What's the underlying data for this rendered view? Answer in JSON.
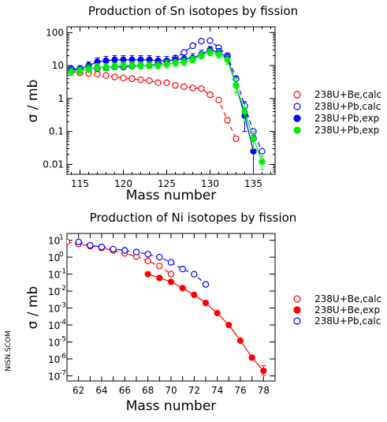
{
  "side_label": "NISN.SCOM",
  "chart_data": [
    {
      "type": "scatter",
      "title": "Production of Sn isotopes by fission",
      "xlabel": "Mass number",
      "ylabel": "σ / mb",
      "xlim": [
        113.5,
        137.5
      ],
      "ylim": [
        0.005,
        150
      ],
      "yscale": "log",
      "x_ticks": [
        115,
        120,
        125,
        130,
        135
      ],
      "y_ticks": [
        {
          "value": 0.01,
          "label": "0.01"
        },
        {
          "value": 0.1,
          "label": "0.1"
        },
        {
          "value": 1,
          "label": "1"
        },
        {
          "value": 10,
          "label": "10"
        },
        {
          "value": 100,
          "label": "100"
        }
      ],
      "legend_position": "right",
      "series": [
        {
          "name": "238U+Be,calc",
          "color": "#ff0000",
          "marker": "open",
          "line": "dashed",
          "x": [
            114,
            115,
            116,
            117,
            118,
            119,
            120,
            121,
            122,
            123,
            124,
            125,
            126,
            127,
            128,
            129,
            130,
            131,
            132,
            133
          ],
          "y": [
            6.5,
            6.0,
            5.8,
            5.5,
            5.0,
            4.5,
            4.2,
            4.0,
            3.7,
            3.5,
            3.0,
            3.0,
            2.5,
            2.3,
            2.1,
            2.0,
            1.3,
            0.9,
            0.22,
            0.06
          ]
        },
        {
          "name": "238U+Pb,calc",
          "color": "#0000ff",
          "marker": "open",
          "line": "dashed",
          "x": [
            114,
            115,
            116,
            117,
            118,
            119,
            120,
            121,
            122,
            123,
            124,
            125,
            126,
            127,
            128,
            129,
            130,
            131,
            132,
            133,
            134,
            135,
            136
          ],
          "y": [
            8,
            8,
            8,
            8,
            8.5,
            9,
            9,
            9.5,
            10,
            10,
            11,
            13,
            17,
            25,
            40,
            55,
            57,
            35,
            20,
            4,
            0.6,
            0.1,
            0.025
          ]
        },
        {
          "name": "238U+Pb,exp",
          "color": "#0000ff",
          "marker": "filled",
          "line": "solid",
          "x": [
            114,
            115,
            116,
            117,
            118,
            119,
            120,
            121,
            122,
            123,
            124,
            125,
            126,
            127,
            128,
            129,
            130,
            131,
            132,
            133,
            134,
            135
          ],
          "y": [
            7,
            8,
            10,
            13,
            14,
            15,
            15,
            15,
            15,
            15,
            14,
            14,
            15,
            16,
            17,
            22,
            30,
            25,
            18,
            2.5,
            0.3,
            0.025
          ],
          "err_lo": [
            1.5,
            1.5,
            2,
            2.5,
            2.5,
            3,
            3,
            3,
            3,
            3,
            3,
            3,
            3,
            3,
            3.5,
            4,
            5,
            5,
            4,
            1.0,
            0.2,
            0.02
          ],
          "err_hi": [
            2,
            2,
            3,
            4,
            5,
            5,
            5,
            5,
            5,
            5,
            5,
            5,
            5,
            5,
            6,
            7,
            8,
            8,
            6,
            2.0,
            0.5,
            0.05
          ]
        },
        {
          "name": "238U+Pb,exp",
          "color": "#00ee00",
          "marker": "filled",
          "line": "solid",
          "x": [
            114,
            115,
            116,
            117,
            118,
            119,
            120,
            121,
            122,
            123,
            124,
            125,
            126,
            127,
            128,
            129,
            130,
            131,
            132,
            133,
            134,
            135,
            136
          ],
          "y": [
            6.5,
            7,
            8,
            9,
            9,
            9.5,
            10,
            10,
            10,
            10,
            10,
            11,
            12,
            13,
            15,
            20,
            25,
            22,
            15,
            2.5,
            0.4,
            0.06,
            0.012
          ],
          "err_lo": [
            1.5,
            1.5,
            2,
            2,
            2,
            2,
            2,
            2,
            2,
            2,
            2,
            2.5,
            2.5,
            3,
            3,
            4,
            5,
            5,
            4,
            1,
            0.2,
            0.03,
            0.005
          ],
          "err_hi": [
            2,
            2,
            2.5,
            2.5,
            2.5,
            2.5,
            3,
            3,
            3,
            3,
            3,
            3.5,
            3.5,
            4,
            4,
            6,
            7,
            7,
            5,
            1.5,
            0.3,
            0.04,
            0.006
          ]
        }
      ]
    },
    {
      "type": "scatter",
      "title": "Production of Ni isotopes by fission",
      "xlabel": "Mass number",
      "ylabel": "σ / mb",
      "xlim": [
        61,
        79
      ],
      "ylim": [
        5e-08,
        25
      ],
      "yscale": "log",
      "x_ticks": [
        62,
        63,
        64,
        65,
        66,
        67,
        68,
        69,
        70,
        71,
        72,
        73,
        74,
        75,
        76,
        77,
        78
      ],
      "x_tick_labels": [
        62,
        64,
        66,
        68,
        70,
        72,
        74,
        76,
        78
      ],
      "y_ticks": [
        {
          "value": 1e-07,
          "base": "10",
          "exp": "-7"
        },
        {
          "value": 1e-06,
          "base": "10",
          "exp": "-6"
        },
        {
          "value": 1e-05,
          "base": "10",
          "exp": "-5"
        },
        {
          "value": 0.0001,
          "base": "10",
          "exp": "-4"
        },
        {
          "value": 0.001,
          "base": "10",
          "exp": "-3"
        },
        {
          "value": 0.01,
          "base": "10",
          "exp": "-2"
        },
        {
          "value": 0.1,
          "base": "10",
          "exp": "-1"
        },
        {
          "value": 1,
          "base": "10",
          "exp": "0"
        },
        {
          "value": 10,
          "base": "10",
          "exp": "1"
        }
      ],
      "legend_position": "right",
      "series": [
        {
          "name": "238U+Be,calc",
          "color": "#ff0000",
          "marker": "open",
          "line": "dashed",
          "x": [
            61,
            62,
            63,
            64,
            65,
            66,
            67,
            68,
            69,
            70
          ],
          "y": [
            8,
            6,
            4.5,
            3.5,
            2.5,
            1.7,
            1.1,
            0.6,
            0.3,
            0.1
          ]
        },
        {
          "name": "238U+Be,exp",
          "color": "#ff0000",
          "marker": "filled",
          "line": "solid",
          "x": [
            68,
            69,
            70,
            71,
            72,
            73,
            74,
            75,
            76,
            77,
            78
          ],
          "y": [
            0.1,
            0.06,
            0.035,
            0.015,
            0.006,
            0.002,
            0.0005,
            0.0001,
            1.2e-05,
            1.2e-06,
            2e-07
          ],
          "err_lo": [
            0,
            0,
            0,
            0,
            0,
            0,
            0,
            0,
            0,
            0,
            9e-08
          ],
          "err_hi": [
            0,
            0,
            0,
            0,
            0,
            0,
            0,
            0,
            0,
            0,
            2e-07
          ]
        },
        {
          "name": "238U+Pb,calc",
          "color": "#0000ff",
          "marker": "open",
          "line": "dashed",
          "x": [
            62,
            63,
            64,
            65,
            66,
            67,
            68,
            69,
            70,
            71,
            72,
            73
          ],
          "y": [
            8,
            5,
            4,
            3,
            2.5,
            2,
            1.5,
            1,
            0.5,
            0.2,
            0.1,
            0.025
          ]
        }
      ]
    }
  ]
}
